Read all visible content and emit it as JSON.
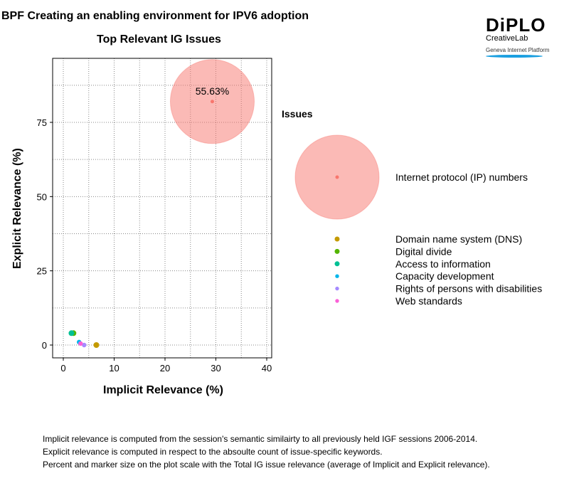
{
  "header": {
    "title": "BPF Creating an enabling environment for IPV6 adoption"
  },
  "logo": {
    "brand": "DiPLO",
    "sub": "CreativeLab",
    "tagline": "Geneva Internet Platform"
  },
  "chart_data": {
    "type": "scatter",
    "title": "Top Relevant IG Issues",
    "xlabel": "Implicit Relevance (%)",
    "ylabel": "Explicit Relevance (%)",
    "xlim": [
      -2,
      41
    ],
    "ylim": [
      -5,
      96
    ],
    "xticks": [
      "0",
      "10",
      "20",
      "30",
      "40"
    ],
    "yticks": [
      "0",
      "25",
      "50",
      "75"
    ],
    "grid": true,
    "legend_title": "Issues",
    "legend_position": "right",
    "series": [
      {
        "name": "Internet protocol (IP) numbers",
        "x": 29.3,
        "y": 82,
        "size": 55.63,
        "label": "55.63%",
        "color": "#F8766D"
      },
      {
        "name": "Domain name system (DNS)",
        "x": 6.5,
        "y": 0,
        "size": 3.2,
        "color": "#C49A00"
      },
      {
        "name": "Digital divide",
        "x": 2.0,
        "y": 4,
        "size": 3.0,
        "color": "#53B400"
      },
      {
        "name": "Access to information",
        "x": 1.6,
        "y": 4,
        "size": 2.8,
        "color": "#00C094"
      },
      {
        "name": "Capacity development",
        "x": 3.1,
        "y": 1,
        "size": 2.0,
        "color": "#00B6EB"
      },
      {
        "name": "Rights of persons with disabilities",
        "x": 4.1,
        "y": 0,
        "size": 2.0,
        "color": "#A58AFF"
      },
      {
        "name": "Web standards",
        "x": 3.4,
        "y": 0.5,
        "size": 2.0,
        "color": "#FB61D7"
      }
    ]
  },
  "footer": {
    "notes": [
      "Implicit relevance is computed from the session's semantic similairty to all previously held IGF sessions 2006-2014.",
      "Explicit relevance is computed in respect to the absoulte count of issue-specific keywords.",
      "Percent and marker size on the plot scale with the Total IG issue relevance (average of Implicit and Explicit relevance)."
    ]
  }
}
